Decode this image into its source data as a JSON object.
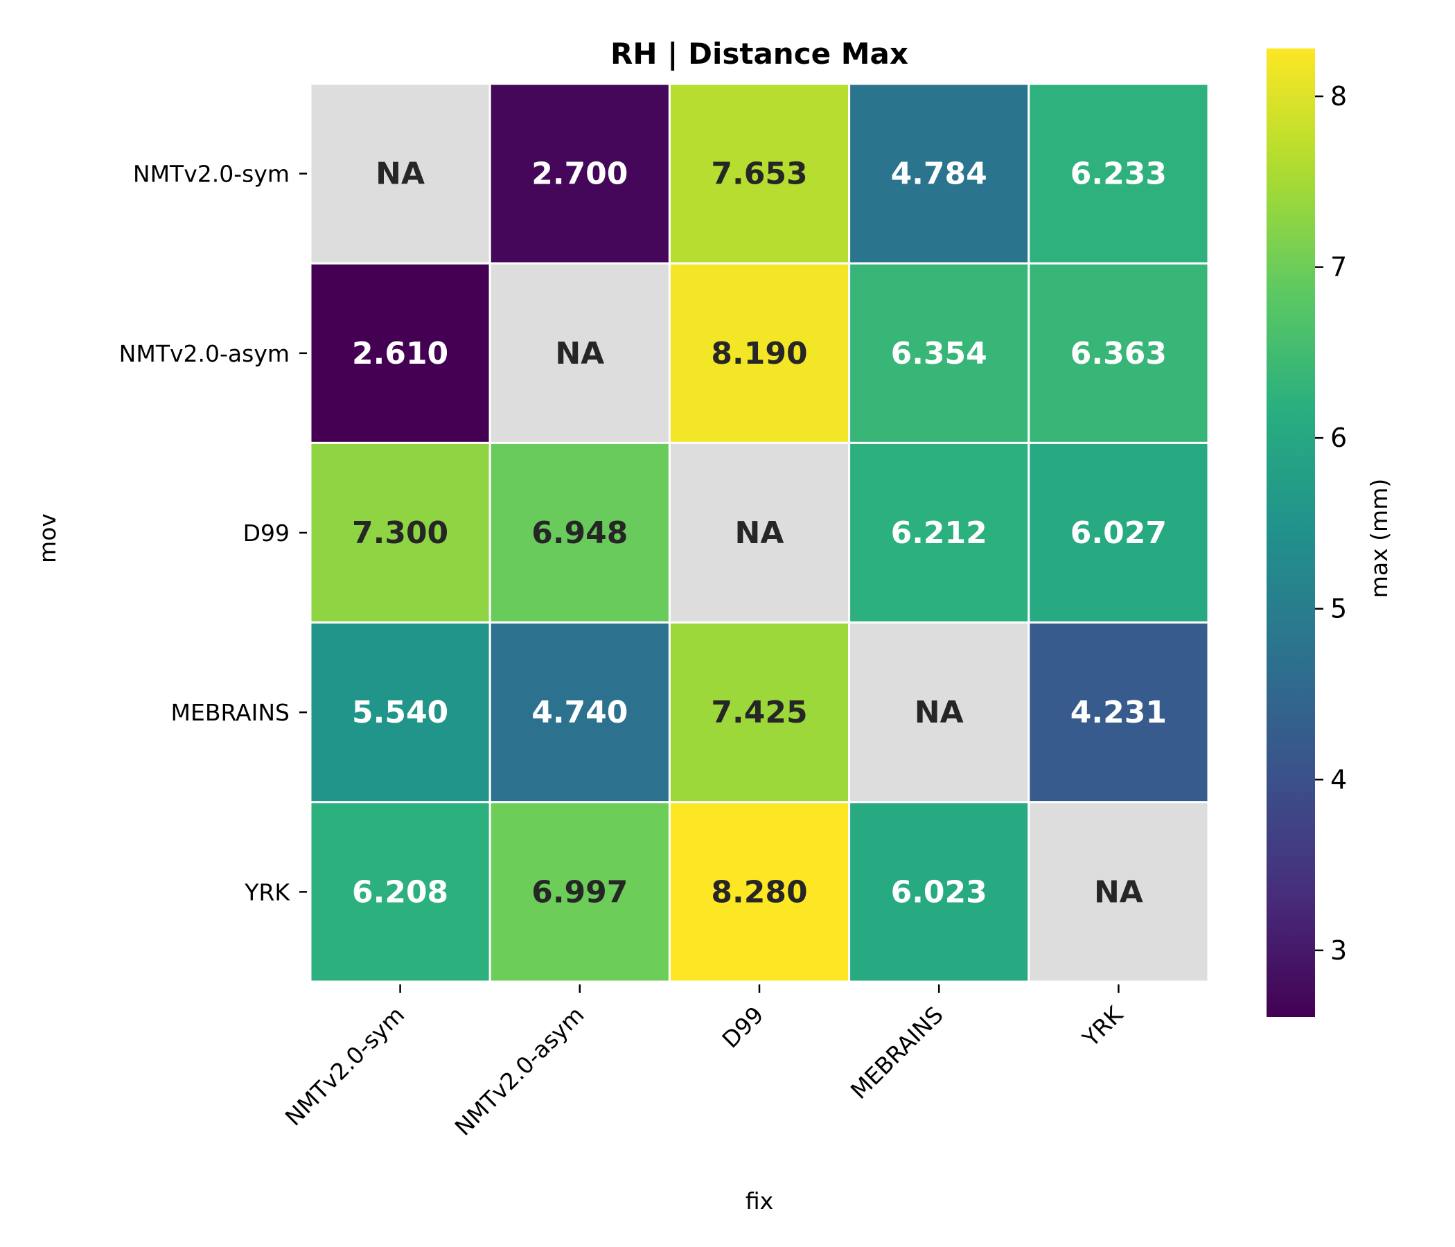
{
  "chart_data": {
    "type": "heatmap",
    "title": "RH | Distance Max",
    "xlabel": "fix",
    "ylabel": "mov",
    "x_categories": [
      "NMTv2.0-sym",
      "NMTv2.0-asym",
      "D99",
      "MEBRAINS",
      "YRK"
    ],
    "y_categories": [
      "NMTv2.0-sym",
      "NMTv2.0-asym",
      "D99",
      "MEBRAINS",
      "YRK"
    ],
    "values": [
      [
        null,
        2.7,
        7.653,
        4.784,
        6.233
      ],
      [
        2.61,
        null,
        8.19,
        6.354,
        6.363
      ],
      [
        7.3,
        6.948,
        null,
        6.212,
        6.027
      ],
      [
        5.54,
        4.74,
        7.425,
        null,
        4.231
      ],
      [
        6.208,
        6.997,
        8.28,
        6.023,
        null
      ]
    ],
    "cell_labels": [
      [
        "NA",
        "2.700",
        "7.653",
        "4.784",
        "6.233"
      ],
      [
        "2.610",
        "NA",
        "8.190",
        "6.354",
        "6.363"
      ],
      [
        "7.300",
        "6.948",
        "NA",
        "6.212",
        "6.027"
      ],
      [
        "5.540",
        "4.740",
        "7.425",
        "NA",
        "4.231"
      ],
      [
        "6.208",
        "6.997",
        "8.280",
        "6.023",
        "NA"
      ]
    ],
    "missing_label": "NA",
    "missing_color": "#dddddd",
    "colormap": "viridis",
    "colorbar": {
      "label": "max (mm)",
      "range": [
        2.61,
        8.28
      ],
      "ticks": [
        3,
        4,
        5,
        6,
        7,
        8
      ],
      "tick_labels": [
        "3",
        "4",
        "5",
        "6",
        "7",
        "8"
      ]
    },
    "grid_color": "#ffffff"
  }
}
